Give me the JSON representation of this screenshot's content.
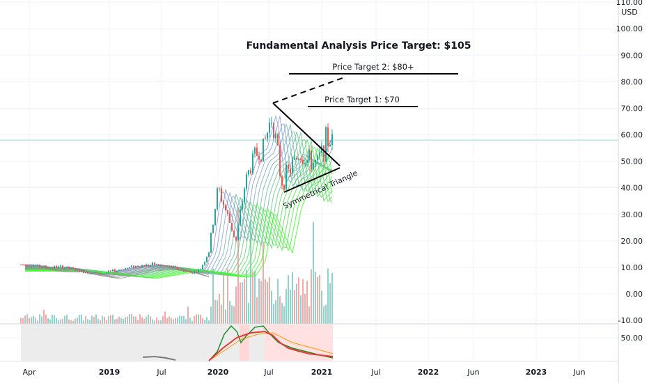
{
  "chart_data": {
    "type": "candlestick",
    "currency_label": "USD",
    "price_axis": {
      "min": -10,
      "max": 110,
      "ticks": [
        "110.00",
        "100.00",
        "90.00",
        "80.00",
        "70.00",
        "60.00",
        "50.00",
        "40.00",
        "30.00",
        "20.00",
        "10.00",
        "0.00",
        "-10.00"
      ]
    },
    "oscillator_axis": {
      "ticks": [
        "50.00"
      ]
    },
    "time_axis_labels": [
      "Apr",
      "2019",
      "Jul",
      "2020",
      "Jul",
      "2021",
      "Jul",
      "2022",
      "Jun",
      "2023",
      "Jun"
    ],
    "current_price_line": 58,
    "price_trend": [
      {
        "date": "2018-04",
        "price": 11
      },
      {
        "date": "2018-06",
        "price": 10
      },
      {
        "date": "2018-08",
        "price": 10
      },
      {
        "date": "2018-10",
        "price": 8.5
      },
      {
        "date": "2018-12",
        "price": 7.5
      },
      {
        "date": "2019-02",
        "price": 9
      },
      {
        "date": "2019-04",
        "price": 10.5
      },
      {
        "date": "2019-06",
        "price": 11
      },
      {
        "date": "2019-08",
        "price": 10
      },
      {
        "date": "2019-10",
        "price": 8
      },
      {
        "date": "2019-11",
        "price": 9
      },
      {
        "date": "2019-12",
        "price": 16
      },
      {
        "date": "2020-01",
        "price": 40
      },
      {
        "date": "2020-02",
        "price": 30
      },
      {
        "date": "2020-03",
        "price": 20
      },
      {
        "date": "2020-04",
        "price": 42
      },
      {
        "date": "2020-05",
        "price": 52
      },
      {
        "date": "2020-06",
        "price": 55
      },
      {
        "date": "2020-07",
        "price": 68
      },
      {
        "date": "2020-08",
        "price": 42
      },
      {
        "date": "2020-09",
        "price": 47
      },
      {
        "date": "2020-10",
        "price": 53
      },
      {
        "date": "2020-11",
        "price": 50
      },
      {
        "date": "2020-12",
        "price": 49
      },
      {
        "date": "2021-01",
        "price": 58
      }
    ],
    "annotations": {
      "title": "Fundamental Analysis Price Target: $105",
      "target2": "Price Target 2: $80+",
      "target1": "Price Target 1: $70",
      "pattern": "Symmetrical Triangle"
    }
  }
}
